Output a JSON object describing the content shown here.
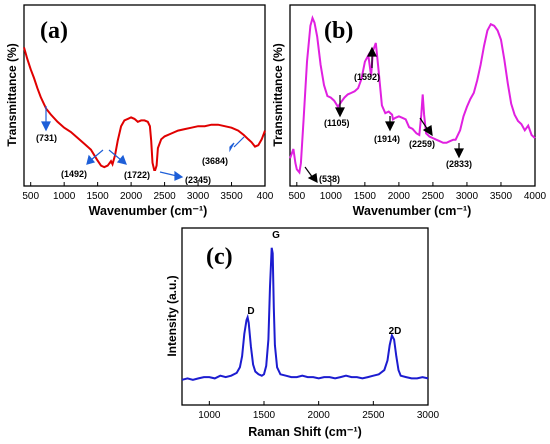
{
  "chart_data": [
    {
      "type": "line",
      "panel_label": "(a)",
      "xlabel": "Wavenumber (cm⁻¹)",
      "ylabel": "Transmittance (%)",
      "xlim": [
        400,
        4000
      ],
      "xticks": [
        "500",
        "1000",
        "1500",
        "2000",
        "2500",
        "3000",
        "3500",
        "400"
      ],
      "color": "#e00000",
      "series": [
        {
          "x": [
            400,
            450,
            500,
            550,
            600,
            650,
            700,
            731,
            800,
            900,
            1000,
            1100,
            1200,
            1300,
            1400,
            1492,
            1550,
            1600,
            1650,
            1700,
            1722,
            1760,
            1800,
            1850,
            1900,
            1950,
            2000,
            2050,
            2100,
            2150,
            2200,
            2250,
            2280,
            2300,
            2320,
            2345,
            2360,
            2380,
            2400,
            2450,
            2500,
            2600,
            2700,
            2800,
            2900,
            3000,
            3100,
            3200,
            3300,
            3400,
            3500,
            3600,
            3684,
            3750,
            3800,
            3850,
            3900,
            3950,
            4000
          ],
          "y": [
            0.84,
            0.76,
            0.69,
            0.63,
            0.56,
            0.5,
            0.45,
            0.42,
            0.38,
            0.33,
            0.29,
            0.26,
            0.22,
            0.18,
            0.14,
            0.07,
            0.03,
            0.02,
            0.03,
            0.06,
            0.04,
            0.1,
            0.2,
            0.3,
            0.34,
            0.35,
            0.36,
            0.35,
            0.33,
            0.34,
            0.34,
            0.33,
            0.3,
            0.2,
            0.05,
            0.0,
            0.0,
            0.03,
            0.15,
            0.21,
            0.23,
            0.25,
            0.27,
            0.28,
            0.29,
            0.3,
            0.3,
            0.31,
            0.31,
            0.3,
            0.29,
            0.27,
            0.24,
            0.21,
            0.19,
            0.16,
            0.17,
            0.21,
            0.27
          ]
        }
      ],
      "annotations": [
        {
          "label": "(731)",
          "x": 731
        },
        {
          "label": "(1492)",
          "x": 1492
        },
        {
          "label": "(1722)",
          "x": 1722
        },
        {
          "label": "(2345)",
          "x": 2345
        },
        {
          "label": "(3684)",
          "x": 3684
        }
      ]
    },
    {
      "type": "line",
      "panel_label": "(b)",
      "xlabel": "Wavenumber (cm⁻¹)",
      "ylabel": "Transmittance (%)",
      "xlim": [
        400,
        4000
      ],
      "xticks": [
        "500",
        "1000",
        "1500",
        "2000",
        "2500",
        "3000",
        "3500",
        "4000"
      ],
      "color": "#e020e0",
      "series": [
        {
          "x": [
            400,
            450,
            480,
            500,
            538,
            560,
            600,
            650,
            700,
            730,
            760,
            800,
            850,
            900,
            950,
            1000,
            1050,
            1105,
            1150,
            1200,
            1250,
            1300,
            1350,
            1400,
            1450,
            1500,
            1550,
            1592,
            1620,
            1660,
            1700,
            1750,
            1800,
            1850,
            1900,
            1914,
            1950,
            2000,
            2050,
            2100,
            2150,
            2200,
            2259,
            2300,
            2330,
            2350,
            2370,
            2400,
            2450,
            2500,
            2550,
            2600,
            2650,
            2700,
            2750,
            2800,
            2833,
            2900,
            2950,
            3000,
            3050,
            3100,
            3150,
            3200,
            3250,
            3300,
            3350,
            3400,
            3450,
            3500,
            3550,
            3600,
            3650,
            3700,
            3750,
            3800,
            3850,
            3900,
            3950,
            4000
          ],
          "y": [
            0.1,
            0.16,
            0.07,
            0.03,
            0.01,
            0.07,
            0.35,
            0.72,
            0.95,
            1.0,
            0.97,
            0.88,
            0.7,
            0.57,
            0.5,
            0.49,
            0.47,
            0.43,
            0.46,
            0.49,
            0.51,
            0.52,
            0.53,
            0.55,
            0.61,
            0.72,
            0.76,
            0.63,
            0.79,
            0.84,
            0.67,
            0.44,
            0.39,
            0.4,
            0.38,
            0.35,
            0.36,
            0.37,
            0.36,
            0.35,
            0.3,
            0.29,
            0.26,
            0.25,
            0.38,
            0.51,
            0.38,
            0.26,
            0.24,
            0.23,
            0.22,
            0.21,
            0.2,
            0.2,
            0.21,
            0.22,
            0.22,
            0.28,
            0.37,
            0.43,
            0.48,
            0.52,
            0.6,
            0.7,
            0.82,
            0.92,
            0.96,
            0.95,
            0.92,
            0.86,
            0.73,
            0.58,
            0.45,
            0.38,
            0.34,
            0.32,
            0.28,
            0.31,
            0.25,
            0.23
          ]
        }
      ],
      "annotations": [
        {
          "label": "(538)",
          "x": 538
        },
        {
          "label": "(1105)",
          "x": 1105
        },
        {
          "label": "(1592)",
          "x": 1592
        },
        {
          "label": "(1914)",
          "x": 1914
        },
        {
          "label": "(2259)",
          "x": 2259
        },
        {
          "label": "(2833)",
          "x": 2833
        }
      ]
    },
    {
      "type": "line",
      "panel_label": "(c)",
      "xlabel": "Raman Shift (cm⁻¹)",
      "ylabel": "Intensity (a.u.)",
      "xlim": [
        750,
        3000
      ],
      "xticks": [
        "1000",
        "1500",
        "2000",
        "2500",
        "3000"
      ],
      "color": "#1c1cd0",
      "series": [
        {
          "x": [
            750,
            800,
            850,
            900,
            950,
            1000,
            1050,
            1100,
            1150,
            1200,
            1250,
            1280,
            1300,
            1320,
            1340,
            1350,
            1360,
            1380,
            1400,
            1420,
            1450,
            1480,
            1500,
            1520,
            1540,
            1555,
            1570,
            1580,
            1590,
            1600,
            1620,
            1650,
            1700,
            1750,
            1800,
            1850,
            1900,
            1950,
            2000,
            2050,
            2100,
            2150,
            2200,
            2250,
            2300,
            2350,
            2400,
            2450,
            2500,
            2550,
            2600,
            2630,
            2650,
            2670,
            2690,
            2710,
            2730,
            2750,
            2800,
            2850,
            2900,
            2950,
            3000
          ],
          "y": [
            0.03,
            0.04,
            0.03,
            0.04,
            0.05,
            0.05,
            0.04,
            0.06,
            0.05,
            0.06,
            0.08,
            0.12,
            0.2,
            0.36,
            0.46,
            0.48,
            0.44,
            0.27,
            0.14,
            0.09,
            0.07,
            0.06,
            0.07,
            0.13,
            0.32,
            0.7,
            0.98,
            0.94,
            0.55,
            0.28,
            0.12,
            0.07,
            0.06,
            0.05,
            0.05,
            0.06,
            0.05,
            0.05,
            0.04,
            0.05,
            0.05,
            0.04,
            0.05,
            0.06,
            0.05,
            0.05,
            0.04,
            0.05,
            0.06,
            0.07,
            0.1,
            0.17,
            0.28,
            0.35,
            0.32,
            0.2,
            0.1,
            0.06,
            0.05,
            0.04,
            0.04,
            0.05,
            0.04
          ]
        }
      ],
      "annotations": [
        {
          "label": "D",
          "x": 1350
        },
        {
          "label": "G",
          "x": 1580
        },
        {
          "label": "2D",
          "x": 2690
        }
      ]
    }
  ]
}
